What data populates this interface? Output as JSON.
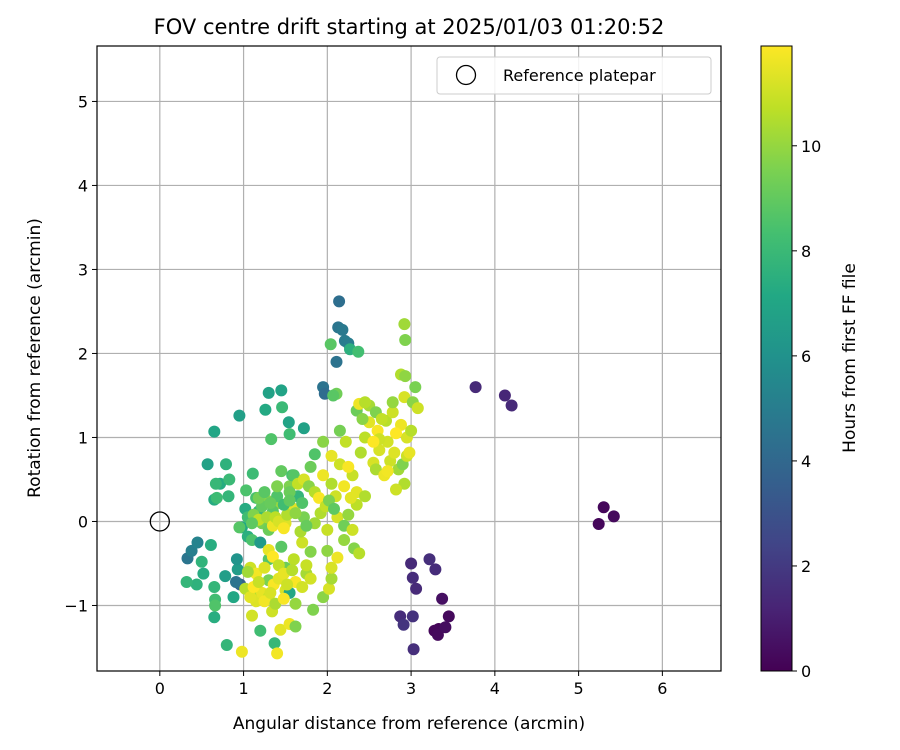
{
  "chart_data": {
    "type": "scatter",
    "title": "FOV centre drift starting at 2025/01/03 01:20:52",
    "xlabel": "Angular distance from reference (arcmin)",
    "ylabel": "Rotation from reference (arcmin)",
    "xlim": [
      -0.75,
      6.7
    ],
    "ylim": [
      -1.78,
      5.66
    ],
    "xticks": [
      "0",
      "1",
      "2",
      "3",
      "4",
      "5",
      "6"
    ],
    "yticks": [
      "−1",
      "0",
      "1",
      "2",
      "3",
      "4",
      "5"
    ],
    "xtick_values": [
      0,
      1,
      2,
      3,
      4,
      5,
      6
    ],
    "ytick_values": [
      -1,
      0,
      1,
      2,
      3,
      4,
      5
    ],
    "grid": true,
    "legend": {
      "placement": "upper-right",
      "entries": [
        "Reference platepar"
      ]
    },
    "reference_point": {
      "x": 0,
      "y": 0,
      "marker": "hollow circle",
      "label": "Reference platepar"
    },
    "colorbar": {
      "label": "Hours from first FF file",
      "colormap": "viridis",
      "range": [
        0,
        11.9
      ],
      "tick_values": [
        0,
        2,
        4,
        6,
        8,
        10
      ],
      "ticks": [
        "0",
        "2",
        "4",
        "6",
        "8",
        "10"
      ]
    },
    "points": [
      [
        5.3,
        0.17,
        0.2
      ],
      [
        5.42,
        0.06,
        0.3
      ],
      [
        5.24,
        -0.03,
        0.2
      ],
      [
        3.33,
        -1.28,
        0.1
      ],
      [
        3.28,
        -1.3,
        0.2
      ],
      [
        3.32,
        -1.35,
        0.3
      ],
      [
        3.41,
        -1.26,
        0.4
      ],
      [
        3.45,
        -1.13,
        0.3
      ],
      [
        3.37,
        -0.92,
        0.5
      ],
      [
        3.03,
        -1.52,
        1.6
      ],
      [
        2.87,
        -1.13,
        1.5
      ],
      [
        2.91,
        -1.23,
        1.8
      ],
      [
        3.02,
        -1.13,
        1.7
      ],
      [
        3.0,
        -0.5,
        1.4
      ],
      [
        3.02,
        -0.67,
        1.5
      ],
      [
        3.06,
        -0.8,
        1.4
      ],
      [
        3.22,
        -0.45,
        1.6
      ],
      [
        3.29,
        -0.57,
        1.5
      ],
      [
        3.77,
        1.6,
        1.4
      ],
      [
        4.12,
        1.5,
        1.3
      ],
      [
        4.2,
        1.38,
        1.4
      ],
      [
        2.14,
        2.62,
        4.3
      ],
      [
        2.13,
        2.31,
        4.6
      ],
      [
        2.18,
        2.28,
        4.8
      ],
      [
        2.21,
        2.15,
        4.9
      ],
      [
        2.25,
        2.12,
        5.0
      ],
      [
        2.27,
        2.05,
        7.5
      ],
      [
        2.37,
        2.02,
        8.3
      ],
      [
        2.04,
        2.11,
        8.8
      ],
      [
        2.11,
        1.9,
        4.5
      ],
      [
        1.95,
        1.6,
        4.5
      ],
      [
        1.97,
        1.52,
        4.2
      ],
      [
        2.11,
        1.52,
        9.3
      ],
      [
        2.07,
        1.5,
        8.8
      ],
      [
        1.3,
        1.53,
        6.8
      ],
      [
        1.45,
        1.56,
        6.9
      ],
      [
        1.26,
        1.33,
        7.2
      ],
      [
        1.46,
        1.36,
        8.0
      ],
      [
        1.54,
        1.18,
        6.9
      ],
      [
        1.72,
        1.11,
        6.8
      ],
      [
        1.55,
        1.04,
        8.2
      ],
      [
        1.33,
        0.98,
        8.6
      ],
      [
        0.95,
        1.26,
        6.7
      ],
      [
        0.65,
        1.07,
        7.0
      ],
      [
        0.57,
        0.68,
        6.8
      ],
      [
        0.79,
        0.68,
        7.6
      ],
      [
        0.72,
        0.45,
        7.3
      ],
      [
        0.67,
        0.45,
        7.9
      ],
      [
        0.83,
        0.5,
        8.0
      ],
      [
        0.65,
        0.26,
        7.3
      ],
      [
        0.68,
        0.28,
        8.1
      ],
      [
        0.82,
        0.3,
        7.8
      ],
      [
        1.11,
        0.57,
        8.1
      ],
      [
        1.15,
        0.28,
        8.4
      ],
      [
        1.03,
        0.37,
        8.5
      ],
      [
        1.02,
        0.15,
        7.3
      ],
      [
        0.98,
        -0.07,
        7.1
      ],
      [
        0.95,
        -0.07,
        8.7
      ],
      [
        0.33,
        -0.44,
        4.6
      ],
      [
        0.38,
        -0.35,
        5.1
      ],
      [
        0.45,
        -0.25,
        5.3
      ],
      [
        0.61,
        -0.28,
        7.4
      ],
      [
        0.5,
        -0.48,
        7.7
      ],
      [
        0.52,
        -0.62,
        7.3
      ],
      [
        0.44,
        -0.75,
        7.6
      ],
      [
        0.32,
        -0.72,
        7.8
      ],
      [
        0.66,
        -0.93,
        8.2
      ],
      [
        0.66,
        -1.0,
        8.6
      ],
      [
        0.65,
        -1.14,
        7.4
      ],
      [
        0.65,
        -0.78,
        7.8
      ],
      [
        0.78,
        -0.65,
        6.6
      ],
      [
        0.93,
        -0.57,
        6.5
      ],
      [
        0.92,
        -0.45,
        6.1
      ],
      [
        0.96,
        -0.75,
        3.7
      ],
      [
        0.91,
        -0.72,
        4.5
      ],
      [
        0.88,
        -0.9,
        7.1
      ],
      [
        0.8,
        -1.47,
        7.8
      ],
      [
        0.98,
        -1.55,
        11.6
      ],
      [
        1.05,
        -0.18,
        7.5
      ],
      [
        1.1,
        -0.22,
        8.5
      ],
      [
        1.2,
        -0.25,
        6.4
      ],
      [
        1.3,
        -0.45,
        8.7
      ],
      [
        1.3,
        -0.7,
        9.5
      ],
      [
        1.15,
        -0.9,
        10.5
      ],
      [
        1.2,
        -1.3,
        8.2
      ],
      [
        1.37,
        -1.45,
        7.9
      ],
      [
        1.4,
        -1.57,
        11.7
      ],
      [
        1.34,
        -1.07,
        11.0
      ],
      [
        1.44,
        -1.29,
        11.4
      ],
      [
        1.1,
        -1.12,
        11.1
      ],
      [
        1.15,
        -0.95,
        11.3
      ],
      [
        1.22,
        -0.85,
        11.5
      ],
      [
        1.3,
        -0.9,
        11.0
      ],
      [
        1.36,
        -0.75,
        11.8
      ],
      [
        1.42,
        -0.68,
        11.4
      ],
      [
        1.5,
        -0.82,
        11.2
      ],
      [
        1.55,
        -1.22,
        11.6
      ],
      [
        1.62,
        -1.25,
        9.6
      ],
      [
        1.55,
        -0.85,
        7.1
      ],
      [
        1.62,
        -0.98,
        10.0
      ],
      [
        1.75,
        -0.62,
        10.3
      ],
      [
        1.8,
        -0.68,
        11.1
      ],
      [
        1.83,
        -1.05,
        9.6
      ],
      [
        1.95,
        -0.9,
        9.8
      ],
      [
        2.02,
        -0.8,
        11.2
      ],
      [
        2.05,
        -0.68,
        10.3
      ],
      [
        2.12,
        -0.43,
        11.6
      ],
      [
        2.05,
        -0.55,
        11.2
      ],
      [
        2.0,
        -0.35,
        9.9
      ],
      [
        1.8,
        -0.36,
        9.7
      ],
      [
        1.7,
        -0.25,
        11.0
      ],
      [
        1.6,
        -0.45,
        10.7
      ],
      [
        1.5,
        -0.55,
        9.2
      ],
      [
        1.45,
        -0.3,
        8.8
      ],
      [
        1.3,
        -0.34,
        11.5
      ],
      [
        1.5,
        -0.02,
        11.3
      ],
      [
        1.6,
        0.15,
        11.4
      ],
      [
        1.42,
        0.22,
        10.1
      ],
      [
        1.35,
        0.12,
        8.8
      ],
      [
        1.18,
        0.12,
        8.0
      ],
      [
        1.22,
        -0.02,
        9.4
      ],
      [
        1.28,
        0.25,
        9.8
      ],
      [
        1.3,
        -0.1,
        9.2
      ],
      [
        1.4,
        0.3,
        8.6
      ],
      [
        1.55,
        0.42,
        9.6
      ],
      [
        1.45,
        0.6,
        9.0
      ],
      [
        1.58,
        0.55,
        8.4
      ],
      [
        1.65,
        0.3,
        7.8
      ],
      [
        1.7,
        0.22,
        8.6
      ],
      [
        1.72,
        0.05,
        9.5
      ],
      [
        1.85,
        -0.02,
        10.2
      ],
      [
        1.92,
        0.1,
        10.5
      ],
      [
        2.0,
        -0.1,
        10.9
      ],
      [
        2.12,
        0.05,
        11.2
      ],
      [
        2.2,
        -0.05,
        9.3
      ],
      [
        2.25,
        0.08,
        10.0
      ],
      [
        2.3,
        -0.1,
        11.0
      ],
      [
        2.35,
        0.2,
        10.7
      ],
      [
        2.28,
        0.28,
        11.4
      ],
      [
        2.32,
        -0.32,
        9.7
      ],
      [
        2.38,
        -0.38,
        10.6
      ],
      [
        2.2,
        -0.22,
        10.0
      ],
      [
        1.95,
        0.55,
        11.6
      ],
      [
        2.05,
        0.45,
        10.5
      ],
      [
        2.1,
        0.3,
        11.0
      ],
      [
        2.2,
        0.42,
        11.7
      ],
      [
        2.3,
        0.55,
        10.9
      ],
      [
        2.35,
        0.35,
        11.4
      ],
      [
        2.45,
        0.3,
        10.5
      ],
      [
        1.8,
        0.65,
        9.2
      ],
      [
        1.85,
        0.8,
        8.6
      ],
      [
        1.95,
        0.95,
        9.8
      ],
      [
        2.05,
        0.78,
        11.5
      ],
      [
        2.15,
        0.68,
        11.0
      ],
      [
        2.25,
        0.65,
        11.8
      ],
      [
        2.4,
        0.82,
        10.5
      ],
      [
        2.55,
        0.7,
        11.2
      ],
      [
        2.58,
        0.62,
        10.4
      ],
      [
        2.68,
        0.55,
        11.6
      ],
      [
        2.75,
        0.72,
        11.0
      ],
      [
        2.8,
        0.82,
        11.3
      ],
      [
        2.85,
        0.62,
        10.2
      ],
      [
        2.9,
        0.68,
        9.6
      ],
      [
        2.95,
        0.78,
        11.0
      ],
      [
        2.98,
        0.82,
        11.5
      ],
      [
        2.92,
        0.45,
        10.5
      ],
      [
        2.82,
        0.38,
        11.0
      ],
      [
        2.72,
        0.6,
        11.7
      ],
      [
        2.62,
        0.85,
        11.2
      ],
      [
        2.45,
        1.0,
        10.7
      ],
      [
        2.5,
        1.18,
        11.4
      ],
      [
        2.6,
        1.08,
        11.8
      ],
      [
        2.7,
        1.2,
        10.6
      ],
      [
        2.78,
        1.3,
        11.0
      ],
      [
        2.88,
        1.15,
        11.6
      ],
      [
        2.95,
        1.0,
        11.2
      ],
      [
        3.0,
        1.08,
        10.6
      ],
      [
        2.82,
        1.05,
        11.9
      ],
      [
        2.72,
        0.95,
        11.1
      ],
      [
        2.35,
        1.32,
        9.2
      ],
      [
        2.42,
        1.22,
        9.8
      ],
      [
        2.5,
        1.38,
        10.3
      ],
      [
        2.58,
        1.3,
        9.6
      ],
      [
        2.65,
        1.22,
        10.8
      ],
      [
        2.78,
        1.42,
        10.0
      ],
      [
        2.92,
        1.48,
        11.2
      ],
      [
        3.02,
        1.42,
        9.8
      ],
      [
        3.08,
        1.35,
        11.0
      ],
      [
        3.05,
        1.6,
        9.5
      ],
      [
        2.88,
        1.75,
        10.5
      ],
      [
        2.93,
        1.73,
        9.9
      ],
      [
        2.92,
        2.35,
        10.2
      ],
      [
        2.93,
        2.16,
        9.6
      ],
      [
        2.15,
        1.08,
        9.4
      ],
      [
        2.22,
        0.95,
        10.8
      ],
      [
        2.38,
        1.4,
        11.6
      ],
      [
        2.45,
        1.42,
        10.6
      ],
      [
        2.62,
        0.98,
        11.0
      ],
      [
        2.55,
        0.95,
        11.9
      ],
      [
        1.05,
        0.05,
        8.2
      ],
      [
        1.12,
        0.08,
        9.6
      ],
      [
        1.18,
        0.02,
        10.8
      ],
      [
        1.22,
        0.18,
        9.0
      ],
      [
        1.28,
        0.05,
        10.4
      ],
      [
        1.35,
        -0.05,
        11.6
      ],
      [
        1.38,
        0.05,
        10.7
      ],
      [
        1.42,
        0.0,
        11.2
      ],
      [
        1.48,
        -0.08,
        11.8
      ],
      [
        1.52,
        0.08,
        10.5
      ],
      [
        1.55,
        0.35,
        9.2
      ],
      [
        1.6,
        0.55,
        8.7
      ],
      [
        1.65,
        0.45,
        10.8
      ],
      [
        1.72,
        0.5,
        11.2
      ],
      [
        1.78,
        0.42,
        9.8
      ],
      [
        1.85,
        0.35,
        10.6
      ],
      [
        1.9,
        0.28,
        11.8
      ],
      [
        1.98,
        0.18,
        10.8
      ],
      [
        2.02,
        0.25,
        9.5
      ],
      [
        2.08,
        0.15,
        8.9
      ],
      [
        1.08,
        -0.55,
        11.0
      ],
      [
        1.15,
        -0.62,
        11.7
      ],
      [
        1.25,
        -0.55,
        11.3
      ],
      [
        1.35,
        -0.42,
        11.9
      ],
      [
        1.42,
        -0.52,
        10.8
      ],
      [
        1.48,
        -0.62,
        11.5
      ],
      [
        1.58,
        -0.58,
        10.6
      ],
      [
        1.62,
        -0.72,
        11.8
      ],
      [
        1.7,
        -0.78,
        11.1
      ],
      [
        1.75,
        -0.52,
        10.9
      ],
      [
        1.05,
        -0.6,
        10.2
      ],
      [
        1.02,
        -0.8,
        10.6
      ],
      [
        1.08,
        -0.9,
        11.4
      ],
      [
        1.12,
        -0.78,
        11.9
      ],
      [
        1.18,
        -0.72,
        10.9
      ],
      [
        1.25,
        -0.95,
        11.7
      ],
      [
        1.32,
        -0.85,
        11.2
      ],
      [
        1.38,
        -0.98,
        10.4
      ],
      [
        1.48,
        -0.92,
        11.8
      ],
      [
        1.52,
        -0.75,
        11.0
      ],
      [
        1.1,
        -0.02,
        8.9
      ],
      [
        1.18,
        0.28,
        9.4
      ],
      [
        1.25,
        0.35,
        8.8
      ],
      [
        1.32,
        0.22,
        9.1
      ],
      [
        1.4,
        0.42,
        9.6
      ],
      [
        1.48,
        0.2,
        8.2
      ],
      [
        1.55,
        0.25,
        9.0
      ],
      [
        1.62,
        0.1,
        9.9
      ],
      [
        1.68,
        -0.12,
        10.4
      ],
      [
        1.75,
        -0.05,
        9.1
      ]
    ]
  }
}
